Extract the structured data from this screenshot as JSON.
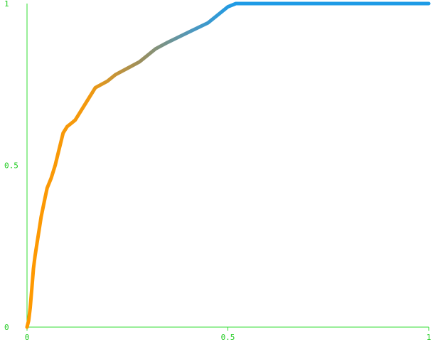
{
  "chart_data": {
    "type": "line",
    "title": "",
    "xlabel": "",
    "ylabel": "",
    "xlim": [
      0,
      1
    ],
    "ylim": [
      0,
      1
    ],
    "x_ticks": [
      {
        "value": 0,
        "label": "0"
      },
      {
        "value": 0.5,
        "label": "0.5"
      },
      {
        "value": 1,
        "label": "1"
      }
    ],
    "y_ticks": [
      {
        "value": 0,
        "label": "0"
      },
      {
        "value": 0.5,
        "label": "0.5"
      },
      {
        "value": 1,
        "label": "1"
      }
    ],
    "grid": false,
    "colors": {
      "axis": "#33dd33",
      "tick_text": "#22cc22",
      "line_start": "#ff9900",
      "line_end": "#1e9be6"
    },
    "series": [
      {
        "x": [
          0.0,
          0.004,
          0.008,
          0.012,
          0.016,
          0.02,
          0.025,
          0.03,
          0.035,
          0.04,
          0.045,
          0.05,
          0.06,
          0.07,
          0.08,
          0.09,
          0.1,
          0.11,
          0.12,
          0.13,
          0.15,
          0.17,
          0.2,
          0.22,
          0.25,
          0.28,
          0.3,
          0.32,
          0.35,
          0.4,
          0.45,
          0.48,
          0.5,
          0.52,
          0.6,
          0.7,
          0.8,
          0.9,
          1.0
        ],
        "y": [
          0.0,
          0.02,
          0.06,
          0.12,
          0.18,
          0.22,
          0.26,
          0.3,
          0.34,
          0.37,
          0.4,
          0.43,
          0.46,
          0.5,
          0.55,
          0.6,
          0.62,
          0.63,
          0.64,
          0.66,
          0.7,
          0.74,
          0.76,
          0.78,
          0.8,
          0.82,
          0.84,
          0.86,
          0.88,
          0.91,
          0.94,
          0.97,
          0.99,
          1.0,
          1.0,
          1.0,
          1.0,
          1.0,
          1.0
        ]
      }
    ]
  }
}
